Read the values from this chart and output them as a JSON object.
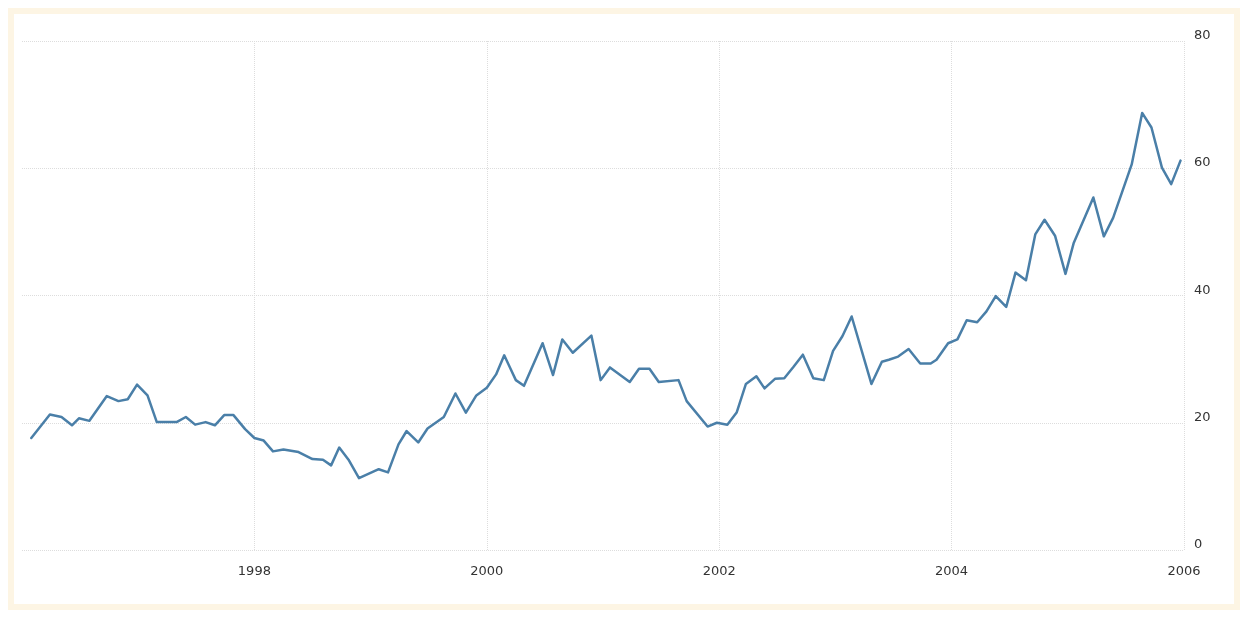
{
  "chart_data": {
    "type": "line",
    "x": [
      1996.08,
      1996.24,
      1996.34,
      1996.43,
      1996.49,
      1996.58,
      1996.73,
      1996.83,
      1996.91,
      1996.99,
      1997.08,
      1997.16,
      1997.33,
      1997.41,
      1997.49,
      1997.58,
      1997.66,
      1997.74,
      1997.82,
      1997.92,
      1998.0,
      1998.08,
      1998.16,
      1998.25,
      1998.38,
      1998.5,
      1998.59,
      1998.66,
      1998.73,
      1998.81,
      1998.9,
      1999.07,
      1999.15,
      1999.24,
      1999.31,
      1999.41,
      1999.49,
      1999.63,
      1999.73,
      1999.82,
      1999.91,
      2000.0,
      2000.08,
      2000.15,
      2000.25,
      2000.32,
      2000.48,
      2000.57,
      2000.65,
      2000.74,
      2000.9,
      2000.98,
      2001.06,
      2001.23,
      2001.31,
      2001.4,
      2001.48,
      2001.65,
      2001.72,
      2001.9,
      2001.98,
      2002.07,
      2002.15,
      2002.23,
      2002.32,
      2002.39,
      2002.48,
      2002.56,
      2002.64,
      2002.72,
      2002.81,
      2002.9,
      2002.98,
      2003.06,
      2003.14,
      2003.31,
      2003.4,
      2003.46,
      2003.54,
      2003.63,
      2003.73,
      2003.82,
      2003.87,
      2003.97,
      2004.05,
      2004.13,
      2004.22,
      2004.3,
      2004.38,
      2004.47,
      2004.55,
      2004.64,
      2004.72,
      2004.8,
      2004.89,
      2004.98,
      2005.05,
      2005.22,
      2005.31,
      2005.39,
      2005.55,
      2005.64,
      2005.72,
      2005.81,
      2005.89,
      2005.97
    ],
    "series": [
      {
        "color": "#4a7fa8",
        "values": [
          17.6,
          21.3,
          20.9,
          19.6,
          20.7,
          20.3,
          24.2,
          23.4,
          23.7,
          26.0,
          24.3,
          20.1,
          20.1,
          20.9,
          19.7,
          20.1,
          19.6,
          21.2,
          21.2,
          19.0,
          17.6,
          17.2,
          15.5,
          15.8,
          15.4,
          14.3,
          14.2,
          13.3,
          16.1,
          14.2,
          11.3,
          12.7,
          12.2,
          16.6,
          18.7,
          16.9,
          19.1,
          20.9,
          24.6,
          21.6,
          24.3,
          25.5,
          27.6,
          30.6,
          26.7,
          25.8,
          32.5,
          27.5,
          33.1,
          31.0,
          33.7,
          26.7,
          28.7,
          26.4,
          28.5,
          28.5,
          26.4,
          26.7,
          23.4,
          19.4,
          20.0,
          19.7,
          21.6,
          26.1,
          27.3,
          25.4,
          26.9,
          27.0,
          28.8,
          30.7,
          27.0,
          26.7,
          31.3,
          33.6,
          36.7,
          26.1,
          29.6,
          29.9,
          30.4,
          31.6,
          29.3,
          29.3,
          29.9,
          32.5,
          33.1,
          36.1,
          35.8,
          37.5,
          39.9,
          38.2,
          43.6,
          42.4,
          49.6,
          51.9,
          49.4,
          43.4,
          48.2,
          55.4,
          49.3,
          52.2,
          60.6,
          68.7,
          66.4,
          60.1,
          57.5,
          61.2
        ]
      }
    ],
    "xlim": [
      1996,
      2006
    ],
    "xticks": [
      1998,
      2000,
      2002,
      2004,
      2006
    ],
    "ylim": [
      0,
      80
    ],
    "yticks": [
      0,
      20,
      40,
      60,
      80
    ],
    "grid": true,
    "marker": "none",
    "line_style": "solid"
  }
}
